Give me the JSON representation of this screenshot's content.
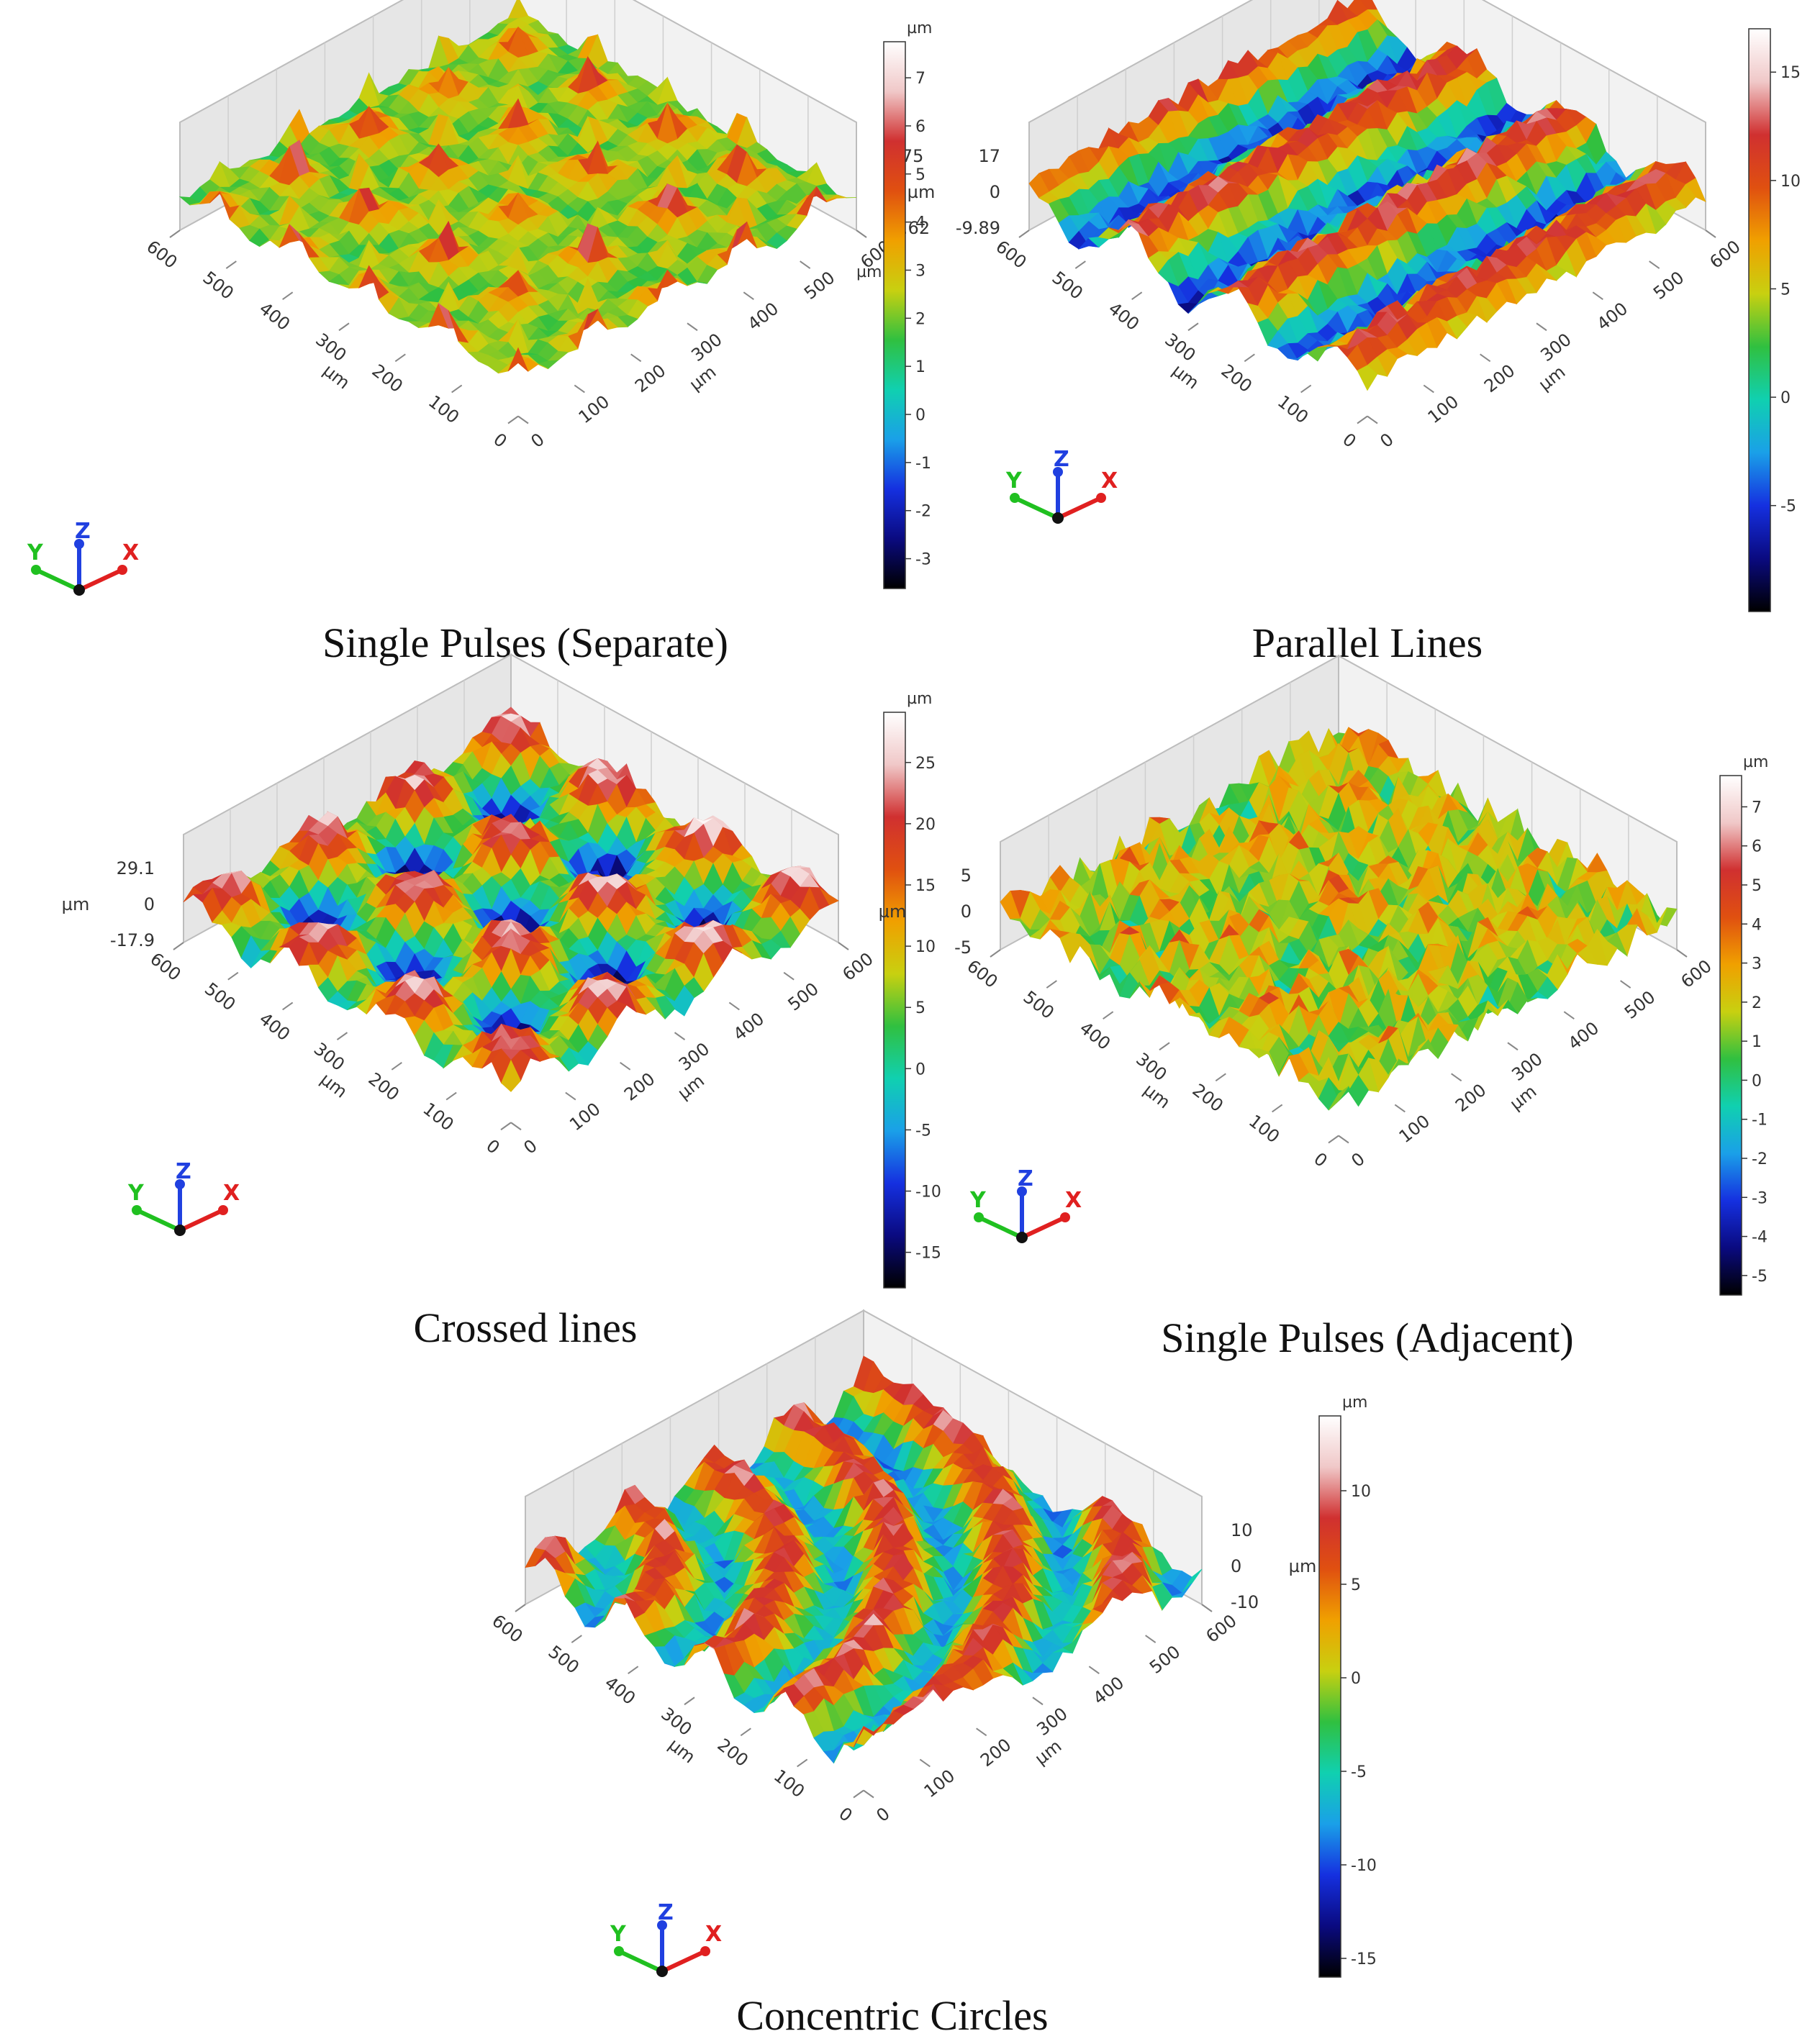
{
  "colors": {
    "colormap": [
      "#000000",
      "#0a0a80",
      "#1530e0",
      "#1aa0e8",
      "#10d0b0",
      "#30c040",
      "#c8d010",
      "#f0a000",
      "#e05010",
      "#d03030",
      "#f0c8c8",
      "#ffffff"
    ],
    "axis_x": "#e02020",
    "axis_y": "#20c020",
    "axis_z": "#2040e0",
    "box": "#d8d8d8"
  },
  "icons": [
    "xyz-axis-triad-icon"
  ],
  "chart_data": [
    {
      "type": "surface3d",
      "title": "Single Pulses (Separate)",
      "pattern": "dimples",
      "x_ticks": [
        "0",
        "100",
        "200",
        "300",
        "400",
        "500",
        "600"
      ],
      "y_ticks": [
        "0",
        "100",
        "200",
        "300",
        "400",
        "500",
        "600"
      ],
      "x_unit": "µm",
      "y_unit": "µm",
      "z_ticks": [
        "7.75",
        "-3.62"
      ],
      "z_unit": "",
      "zlim": [
        -3.62,
        7.75
      ],
      "colorbar": {
        "unit": "µm",
        "side_unit": "µm",
        "ticks": [
          "7",
          "6",
          "5",
          "4",
          "3",
          "2",
          "1",
          "0",
          "-1",
          "-2",
          "-3"
        ],
        "range": [
          -3.62,
          7.75
        ]
      },
      "triad": {
        "x": "X",
        "y": "Y",
        "z": "Z"
      }
    },
    {
      "type": "surface3d",
      "title": "Parallel Lines",
      "pattern": "lines",
      "x_ticks": [
        "0",
        "100",
        "200",
        "300",
        "400",
        "500",
        "600"
      ],
      "y_ticks": [
        "0",
        "100",
        "200",
        "300",
        "400",
        "500",
        "600"
      ],
      "x_unit": "µm",
      "y_unit": "µm",
      "z_ticks": [
        "17",
        "0",
        "-9.89"
      ],
      "z_unit": "µm",
      "zlim": [
        -9.89,
        17
      ],
      "colorbar": {
        "unit": "",
        "side_unit": "",
        "ticks": [
          "15",
          "10",
          "5",
          "0",
          "-5"
        ],
        "range": [
          -9.89,
          17
        ]
      },
      "triad": {
        "x": "X",
        "y": "Y",
        "z": "Z"
      }
    },
    {
      "type": "surface3d",
      "title": "Crossed lines",
      "pattern": "crossed",
      "x_ticks": [
        "0",
        "100",
        "200",
        "300",
        "400",
        "500",
        "600"
      ],
      "y_ticks": [
        "0",
        "100",
        "200",
        "300",
        "400",
        "500",
        "600"
      ],
      "x_unit": "µm",
      "y_unit": "µm",
      "z_ticks": [
        "29.1",
        "0",
        "-17.9"
      ],
      "z_unit": "µm",
      "zlim": [
        -17.9,
        29.1
      ],
      "colorbar": {
        "unit": "µm",
        "side_unit": "",
        "ticks": [
          "25",
          "20",
          "15",
          "10",
          "5",
          "0",
          "-5",
          "-10",
          "-15"
        ],
        "range": [
          -17.9,
          29.1
        ]
      },
      "triad": {
        "x": "X",
        "y": "Y",
        "z": "Z"
      }
    },
    {
      "type": "surface3d",
      "title": "Single Pulses (Adjacent)",
      "pattern": "noise",
      "x_ticks": [
        "0",
        "100",
        "200",
        "300",
        "400",
        "500",
        "600"
      ],
      "y_ticks": [
        "0",
        "100",
        "200",
        "300",
        "400",
        "500",
        "600"
      ],
      "x_unit": "µm",
      "y_unit": "µm",
      "z_ticks": [
        "5",
        "0",
        "-5"
      ],
      "z_unit": "µm",
      "zlim": [
        -5.5,
        7.8
      ],
      "colorbar": {
        "unit": "µm",
        "side_unit": "",
        "ticks": [
          "7",
          "6",
          "5",
          "4",
          "3",
          "2",
          "1",
          "0",
          "-1",
          "-2",
          "-3",
          "-4",
          "-5"
        ],
        "range": [
          -5.5,
          7.8
        ]
      },
      "triad": {
        "x": "X",
        "y": "Y",
        "z": "Z"
      }
    },
    {
      "type": "surface3d",
      "title": "Concentric Circles",
      "pattern": "rings",
      "x_ticks": [
        "0",
        "100",
        "200",
        "300",
        "400",
        "500",
        "600"
      ],
      "y_ticks": [
        "0",
        "100",
        "200",
        "300",
        "400",
        "500",
        "600"
      ],
      "x_unit": "µm",
      "y_unit": "µm",
      "z_ticks": [
        "10",
        "0",
        "-10"
      ],
      "z_unit": "µm",
      "zlim": [
        -16,
        14
      ],
      "colorbar": {
        "unit": "µm",
        "side_unit": "",
        "ticks": [
          "10",
          "5",
          "0",
          "-5",
          "-10",
          "-15"
        ],
        "range": [
          -16,
          14
        ]
      },
      "triad": {
        "x": "X",
        "y": "Y",
        "z": "Z"
      }
    }
  ]
}
